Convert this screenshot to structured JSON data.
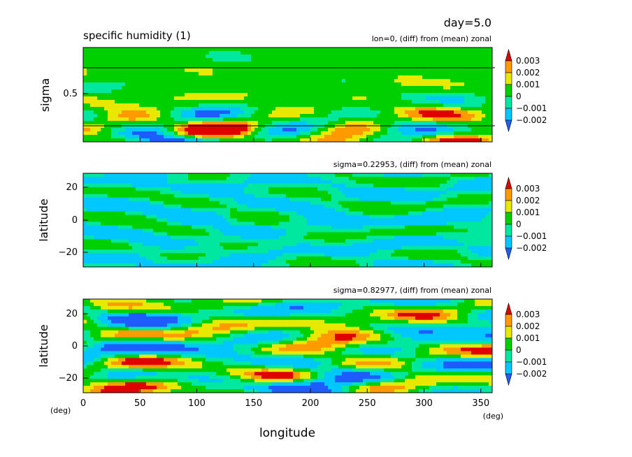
{
  "header": {
    "day_label": "day=5.0",
    "title": "specific humidity (1)"
  },
  "legend_labels": [
    "0.003",
    "0.002",
    "0.001",
    "0",
    "−0.001",
    "−0.002"
  ],
  "colors": {
    "levels": [
      "#1f5cff",
      "#00c8ff",
      "#00e8a0",
      "#00d000",
      "#e8e800",
      "#ff9a00",
      "#e00000"
    ],
    "lowest": "#1f5cff",
    "highest": "#e00000"
  },
  "panels": [
    {
      "subtitle": "lon=0, (diff) from (mean) zonal",
      "ylabel": "sigma",
      "yticks": [
        "0.5"
      ]
    },
    {
      "subtitle": "sigma=0.22953, (diff) from (mean) zonal",
      "ylabel": "latitude",
      "yticks": [
        "20",
        "0",
        "−20"
      ]
    },
    {
      "subtitle": "sigma=0.82977, (diff) from (mean) zonal",
      "ylabel": "latitude",
      "yticks": [
        "20",
        "0",
        "−20"
      ],
      "yunit": "(deg)"
    }
  ],
  "xaxis": {
    "label": "longitude",
    "unit": "(deg)",
    "ticks": [
      "0",
      "50",
      "100",
      "150",
      "200",
      "250",
      "300",
      "350"
    ]
  },
  "chart_data": [
    {
      "type": "heatmap",
      "title": "specific humidity (1)",
      "subtitle": "lon=0, (diff) from (mean) zonal",
      "xlabel": "longitude",
      "ylabel": "sigma",
      "xlim": [
        0,
        360
      ],
      "ylim": [
        1.0,
        0.0
      ],
      "contour_levels": [
        -0.002,
        -0.001,
        0,
        0.001,
        0.002,
        0.003
      ],
      "reference_lines_sigma": [
        0.22953,
        0.82977
      ],
      "grid": false,
      "legend_position": "right"
    },
    {
      "type": "heatmap",
      "subtitle": "sigma=0.22953, (diff) from (mean) zonal",
      "xlabel": "longitude",
      "ylabel": "latitude",
      "xlim": [
        0,
        360
      ],
      "ylim": [
        -30,
        30
      ],
      "contour_levels": [
        -0.002,
        -0.001,
        0,
        0.001,
        0.002,
        0.003
      ],
      "grid": false,
      "legend_position": "right"
    },
    {
      "type": "heatmap",
      "subtitle": "sigma=0.82977, (diff) from (mean) zonal",
      "xlabel": "longitude",
      "ylabel": "latitude",
      "xlim": [
        0,
        360
      ],
      "ylim": [
        -30,
        30
      ],
      "contour_levels": [
        -0.002,
        -0.001,
        0,
        0.001,
        0.002,
        0.003
      ],
      "grid": false,
      "legend_position": "right"
    }
  ]
}
